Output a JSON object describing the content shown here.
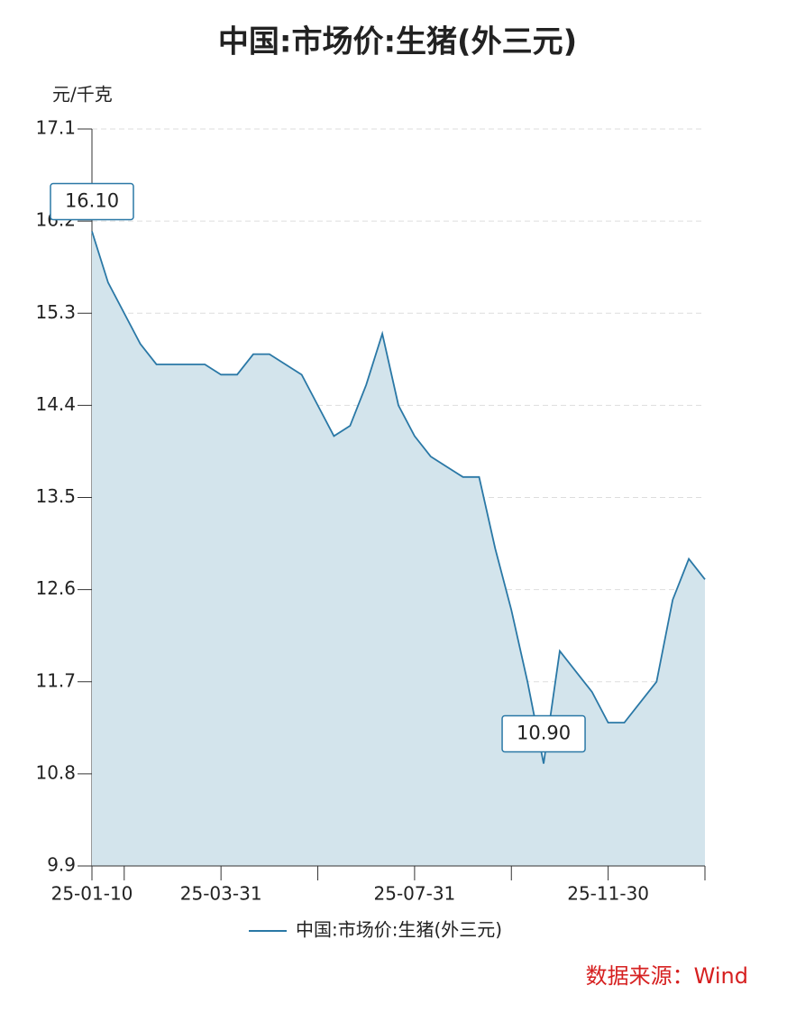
{
  "chart_data": {
    "type": "area",
    "title": "中国:市场价:生猪(外三元)",
    "y_axis_label": "元/千克",
    "source": "数据来源：Wind",
    "categories": [
      "25-01-10",
      null,
      null,
      null,
      null,
      null,
      null,
      null,
      "25-03-31",
      null,
      null,
      null,
      null,
      null,
      null,
      null,
      null,
      null,
      null,
      null,
      "25-07-31",
      null,
      null,
      null,
      null,
      null,
      null,
      null,
      null,
      null,
      null,
      null,
      "25-11-30",
      null,
      null,
      null,
      null,
      null,
      null
    ],
    "series": [
      {
        "name": "中国:市场价:生猪(外三元)",
        "color": "#2a78a6",
        "values": [
          16.1,
          15.6,
          15.3,
          15.0,
          14.8,
          14.8,
          14.8,
          14.8,
          14.7,
          14.7,
          14.9,
          14.9,
          14.8,
          14.7,
          14.4,
          14.1,
          14.2,
          14.6,
          15.1,
          14.4,
          14.1,
          13.9,
          13.8,
          13.7,
          13.7,
          13.0,
          12.4,
          11.7,
          10.9,
          12.0,
          11.8,
          11.6,
          11.3,
          11.3,
          11.5,
          11.7,
          12.5,
          12.9,
          12.7
        ],
        "value_labels": [
          "16.10",
          null,
          null,
          null,
          null,
          null,
          null,
          null,
          null,
          null,
          null,
          null,
          null,
          null,
          null,
          null,
          null,
          null,
          null,
          null,
          null,
          null,
          null,
          null,
          null,
          null,
          null,
          null,
          "10.90",
          null,
          null,
          null,
          null,
          null,
          null,
          null,
          null,
          null,
          null
        ]
      }
    ],
    "ylim": [
      9.9,
      17.1
    ],
    "yticks": [
      9.9,
      10.8,
      11.7,
      12.6,
      13.5,
      14.4,
      15.3,
      16.2,
      17.1
    ],
    "grid": true,
    "legend": "bottom"
  }
}
